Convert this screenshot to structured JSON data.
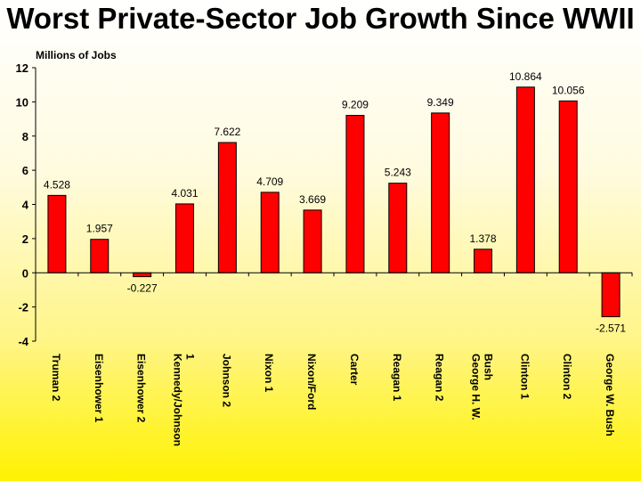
{
  "title": "Worst Private-Sector Job Growth Since WWII",
  "chart_data": {
    "type": "bar",
    "title": "Worst Private-Sector Job Growth Since WWII",
    "ylabel": "Millions of Jobs",
    "xlabel": "",
    "ylim": [
      -4,
      12
    ],
    "yticks": [
      12,
      10,
      8,
      6,
      4,
      2,
      0,
      -2,
      -4
    ],
    "grid": false,
    "legend": "none",
    "bar_color": "#ff0000",
    "categories": [
      "Truman 2",
      "Eisenhower 1",
      "Eisenhower 2",
      "Kennedy/Johnson 1",
      "Johnson 2",
      "Nixon 1",
      "Nixon/Ford",
      "Carter",
      "Reagan 1",
      "Reagan 2",
      "George H. W. Bush",
      "Clinton 1",
      "Clinton 2",
      "George W. Bush"
    ],
    "category_lines": [
      [
        "Truman 2"
      ],
      [
        "Eisenhower 1"
      ],
      [
        "Eisenhower 2"
      ],
      [
        "Kennedy/Johnson",
        "1"
      ],
      [
        "Johnson 2"
      ],
      [
        "Nixon 1"
      ],
      [
        "Nixon/Ford"
      ],
      [
        "Carter"
      ],
      [
        "Reagan 1"
      ],
      [
        "Reagan 2"
      ],
      [
        "George H. W.",
        "Bush"
      ],
      [
        "Clinton 1"
      ],
      [
        "Clinton 2"
      ],
      [
        "George W. Bush"
      ]
    ],
    "values": [
      4.528,
      1.957,
      -0.227,
      4.031,
      7.622,
      4.709,
      3.669,
      9.209,
      5.243,
      9.349,
      1.378,
      10.864,
      10.056,
      -2.571
    ],
    "value_labels": [
      "4.528",
      "1.957",
      "-0.227",
      "4.031",
      "7.622",
      "4.709",
      "3.669",
      "9.209",
      "5.243",
      "9.349",
      "1.378",
      "10.864",
      "10.056",
      "-2.571"
    ]
  }
}
